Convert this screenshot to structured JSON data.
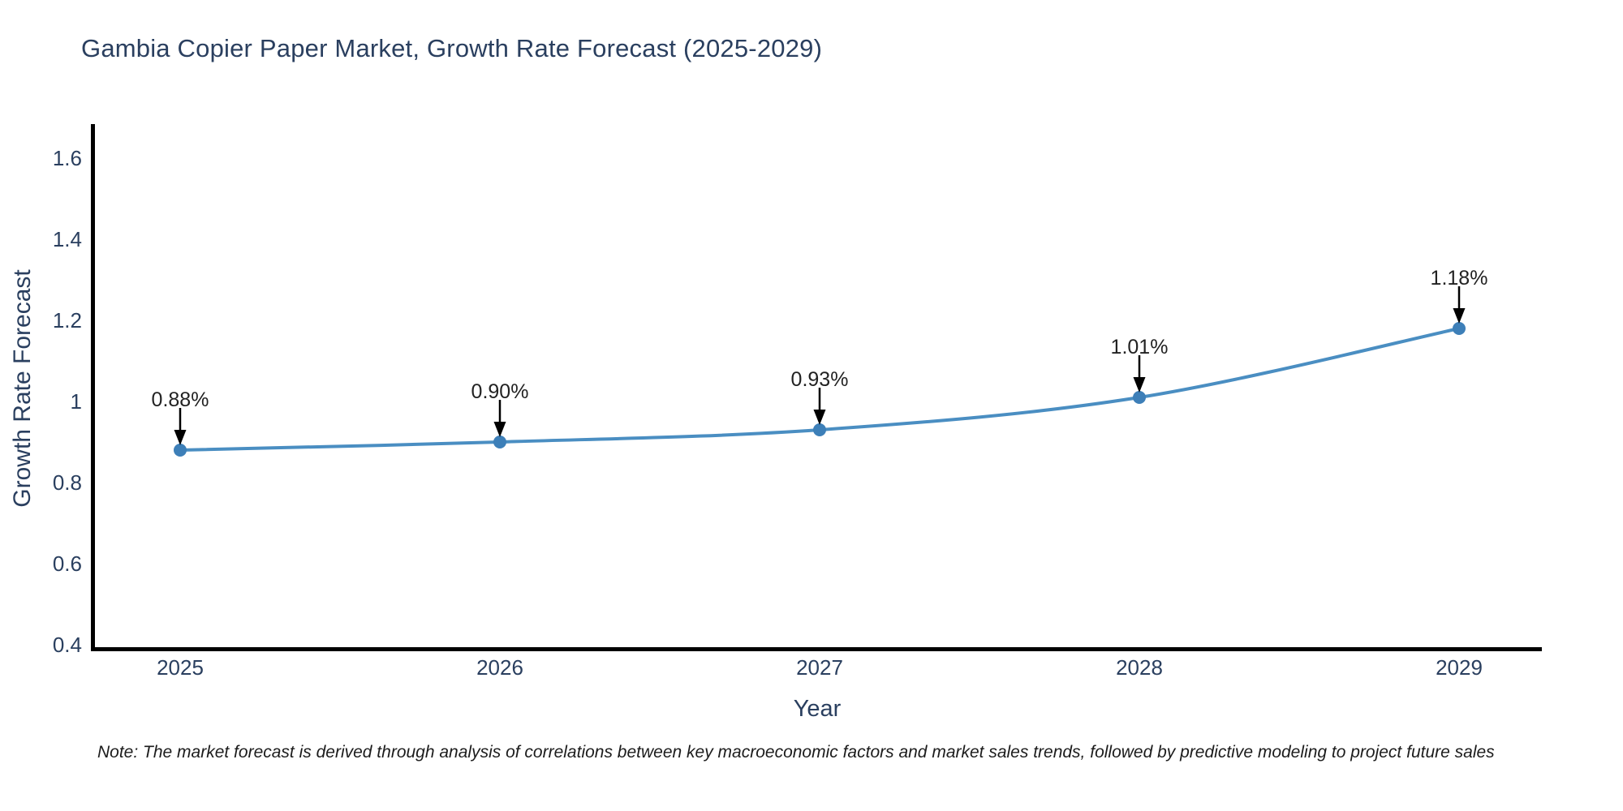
{
  "chart_data": {
    "type": "line",
    "title": "Gambia Copier Paper Market, Growth Rate Forecast (2025-2029)",
    "x": [
      "2025",
      "2026",
      "2027",
      "2028",
      "2029"
    ],
    "series": [
      {
        "name": "Growth Rate Forecast",
        "values": [
          0.88,
          0.9,
          0.93,
          1.01,
          1.18
        ]
      }
    ],
    "point_labels": [
      "0.88%",
      "0.90%",
      "0.93%",
      "1.01%",
      "1.18%"
    ],
    "xlabel": "Year",
    "ylabel": "Growth Rate Forecast",
    "yticks": [
      0.4,
      0.6,
      0.8,
      1,
      1.2,
      1.4,
      1.6
    ],
    "ytick_labels": [
      "0.4",
      "0.6",
      "0.8",
      "1",
      "1.2",
      "1.4",
      "1.6"
    ],
    "ylim": [
      0.384,
      1.68
    ],
    "grid": false,
    "legend": "none",
    "annotation_style": "value label with down arrow to marker",
    "line_color": "#4a8ec2",
    "marker_color": "#3d7fb8",
    "arrow_color": "#000000",
    "text_color": "#2a3f5f"
  },
  "footnote": {
    "text": "Note: The market forecast is derived through analysis of correlations between key macroeconomic factors and market sales trends, followed by predictive modeling to project future sales"
  }
}
